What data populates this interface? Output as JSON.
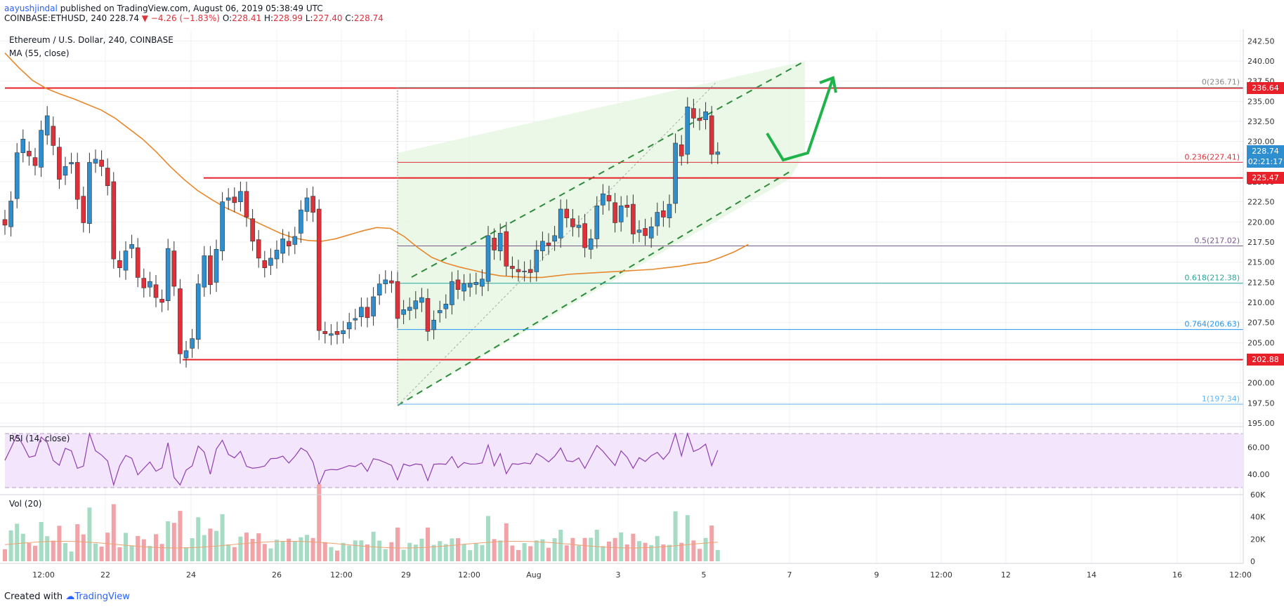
{
  "header": {
    "user": "aayushjindal",
    "published": "published on TradingView.com, August 06, 2019 05:38:49 UTC",
    "symbol": "COINBASE:ETHUSD, 240",
    "last": "228.74",
    "change": "−4.26 (−1.83%)",
    "o_label": "O:",
    "o": "228.41",
    "h_label": "H:",
    "h": "228.99",
    "l_label": "L:",
    "l": "227.40",
    "c_label": "C:",
    "c": "228.74"
  },
  "title": "Ethereum / U.S. Dollar, 240, COINBASE",
  "ma_label": "MA (55, close)",
  "rsi_label": "RSI (14, close)",
  "vol_label": "Vol (20)",
  "footer": {
    "created": "Created with",
    "brand": "TradingView"
  },
  "colors": {
    "up": "#2e8fd0",
    "down": "#e0303a",
    "level": "#e8202a",
    "ma": "#e8872b",
    "rsi": "#8e3fb0",
    "channel": "#2e8b3a",
    "arrow": "#1fb34a"
  },
  "price_tags": [
    {
      "price": 236.64,
      "text": "236.64",
      "color": "#e8202a"
    },
    {
      "price": 228.74,
      "text": "228.74",
      "color": "#2e8fd0"
    },
    {
      "price": 227.4,
      "text": "02:21:17",
      "color": "#2e8fd0"
    },
    {
      "price": 225.47,
      "text": "225.47",
      "color": "#e8202a"
    },
    {
      "price": 202.88,
      "text": "202.88",
      "color": "#e8202a"
    }
  ],
  "chart_data": {
    "type": "candlestick",
    "title": "Ethereum / U.S. Dollar, 240, COINBASE",
    "price_axis": [
      "242.50",
      "240.00",
      "237.50",
      "235.00",
      "232.50",
      "230.00",
      "227.50",
      "225.00",
      "222.50",
      "220.00",
      "217.50",
      "215.00",
      "212.50",
      "210.00",
      "207.50",
      "205.00",
      "202.50",
      "200.00",
      "197.50",
      "195.00"
    ],
    "ylim": [
      195,
      243
    ],
    "x_axis": [
      "12:00",
      "22",
      "24",
      "26",
      "12:00",
      "29",
      "12:00",
      "Aug",
      "3",
      "5",
      "7",
      "9",
      "12:00",
      "12",
      "14",
      "16",
      "12:00"
    ],
    "rsi_axis": [
      "60.00",
      "40.00"
    ],
    "vol_axis": [
      "60K",
      "40K",
      "20K",
      "0"
    ],
    "candles": [
      {
        "o": 220.3,
        "c": 219.6
      },
      {
        "o": 219.4,
        "c": 222.6
      },
      {
        "o": 222.9,
        "c": 228.6
      },
      {
        "o": 228.6,
        "c": 230.3
      },
      {
        "o": 228.8,
        "c": 228.2
      },
      {
        "o": 228.0,
        "c": 227.0
      },
      {
        "o": 226.8,
        "c": 231.4
      },
      {
        "o": 230.8,
        "c": 233.2
      },
      {
        "o": 231.9,
        "c": 229.5
      },
      {
        "o": 229.3,
        "c": 225.3
      },
      {
        "o": 225.8,
        "c": 226.9
      },
      {
        "o": 227.2,
        "c": 227.4
      },
      {
        "o": 227.4,
        "c": 222.8
      },
      {
        "o": 223.2,
        "c": 219.9
      },
      {
        "o": 219.8,
        "c": 227.4
      },
      {
        "o": 227.3,
        "c": 227.8
      },
      {
        "o": 227.7,
        "c": 226.9
      },
      {
        "o": 226.7,
        "c": 224.5
      },
      {
        "o": 225.0,
        "c": 215.4
      },
      {
        "o": 215.2,
        "c": 214.3
      },
      {
        "o": 214.0,
        "c": 216.4
      },
      {
        "o": 216.7,
        "c": 217.2
      },
      {
        "o": 216.8,
        "c": 213.1
      },
      {
        "o": 213.0,
        "c": 211.8
      },
      {
        "o": 211.9,
        "c": 212.6
      },
      {
        "o": 212.2,
        "c": 210.6
      },
      {
        "o": 210.4,
        "c": 210.0
      },
      {
        "o": 210.2,
        "c": 216.7
      },
      {
        "o": 216.4,
        "c": 212.0
      },
      {
        "o": 211.7,
        "c": 203.6
      },
      {
        "o": 203.1,
        "c": 204.0
      },
      {
        "o": 204.3,
        "c": 205.5
      },
      {
        "o": 205.4,
        "c": 212.3
      },
      {
        "o": 211.9,
        "c": 215.8
      },
      {
        "o": 215.8,
        "c": 212.2
      },
      {
        "o": 212.5,
        "c": 216.6
      },
      {
        "o": 216.4,
        "c": 222.5
      },
      {
        "o": 222.7,
        "c": 223.0
      },
      {
        "o": 223.1,
        "c": 222.4
      },
      {
        "o": 222.5,
        "c": 223.8
      },
      {
        "o": 223.8,
        "c": 220.6
      },
      {
        "o": 220.4,
        "c": 217.6
      },
      {
        "o": 217.8,
        "c": 215.5
      },
      {
        "o": 215.2,
        "c": 214.3
      },
      {
        "o": 214.6,
        "c": 215.5
      },
      {
        "o": 215.4,
        "c": 216.5
      },
      {
        "o": 216.1,
        "c": 217.9
      },
      {
        "o": 217.6,
        "c": 217.0
      },
      {
        "o": 217.2,
        "c": 218.2
      },
      {
        "o": 218.6,
        "c": 221.5
      },
      {
        "o": 221.3,
        "c": 223.0
      },
      {
        "o": 223.2,
        "c": 221.2
      },
      {
        "o": 221.6,
        "c": 206.5
      },
      {
        "o": 206.4,
        "c": 206.1
      },
      {
        "o": 205.9,
        "c": 206.1
      },
      {
        "o": 206.4,
        "c": 206.0
      },
      {
        "o": 206.1,
        "c": 206.5
      },
      {
        "o": 206.7,
        "c": 207.5
      },
      {
        "o": 207.8,
        "c": 208.0
      },
      {
        "o": 208.2,
        "c": 209.4
      },
      {
        "o": 209.4,
        "c": 208.1
      },
      {
        "o": 208.3,
        "c": 210.7
      },
      {
        "o": 210.9,
        "c": 212.3
      },
      {
        "o": 212.3,
        "c": 212.8
      },
      {
        "o": 212.7,
        "c": 212.4
      },
      {
        "o": 212.6,
        "c": 208.0
      },
      {
        "o": 208.5,
        "c": 209.1
      },
      {
        "o": 209.0,
        "c": 209.4
      },
      {
        "o": 209.2,
        "c": 210.2
      },
      {
        "o": 210.0,
        "c": 210.6
      },
      {
        "o": 210.5,
        "c": 206.4
      },
      {
        "o": 206.6,
        "c": 207.8
      },
      {
        "o": 208.7,
        "c": 209.0
      },
      {
        "o": 209.2,
        "c": 209.8
      },
      {
        "o": 209.7,
        "c": 212.6
      },
      {
        "o": 212.8,
        "c": 211.6
      },
      {
        "o": 211.4,
        "c": 212.3
      },
      {
        "o": 211.9,
        "c": 212.4
      },
      {
        "o": 212.2,
        "c": 212.5
      },
      {
        "o": 212.0,
        "c": 212.9
      },
      {
        "o": 212.6,
        "c": 218.3
      },
      {
        "o": 218.0,
        "c": 216.5
      },
      {
        "o": 216.4,
        "c": 218.6
      },
      {
        "o": 218.8,
        "c": 214.5
      },
      {
        "o": 214.5,
        "c": 214.2
      },
      {
        "o": 214.1,
        "c": 213.8
      },
      {
        "o": 213.8,
        "c": 213.9
      },
      {
        "o": 214.1,
        "c": 213.7
      },
      {
        "o": 213.8,
        "c": 216.5
      },
      {
        "o": 216.4,
        "c": 217.6
      },
      {
        "o": 217.4,
        "c": 217.1
      },
      {
        "o": 217.6,
        "c": 218.3
      },
      {
        "o": 218.0,
        "c": 221.6
      },
      {
        "o": 221.6,
        "c": 220.5
      },
      {
        "o": 220.4,
        "c": 219.4
      },
      {
        "o": 219.3,
        "c": 219.6
      },
      {
        "o": 219.8,
        "c": 216.8
      },
      {
        "o": 216.6,
        "c": 217.9
      },
      {
        "o": 217.9,
        "c": 222.0
      },
      {
        "o": 222.1,
        "c": 223.5
      },
      {
        "o": 223.3,
        "c": 222.6
      },
      {
        "o": 222.4,
        "c": 219.9
      },
      {
        "o": 220.0,
        "c": 222.0
      },
      {
        "o": 222.1,
        "c": 221.8
      },
      {
        "o": 222.2,
        "c": 218.5
      },
      {
        "o": 218.7,
        "c": 219.0
      },
      {
        "o": 219.2,
        "c": 218.3
      },
      {
        "o": 218.0,
        "c": 219.4
      },
      {
        "o": 219.5,
        "c": 221.2
      },
      {
        "o": 221.4,
        "c": 220.6
      },
      {
        "o": 220.5,
        "c": 222.2
      },
      {
        "o": 222.3,
        "c": 229.8
      },
      {
        "o": 229.6,
        "c": 228.2
      },
      {
        "o": 228.4,
        "c": 234.3
      },
      {
        "o": 234.1,
        "c": 232.9
      },
      {
        "o": 232.9,
        "c": 232.6
      },
      {
        "o": 232.7,
        "c": 233.7
      },
      {
        "o": 233.2,
        "c": 228.4
      },
      {
        "o": 228.4,
        "c": 228.7
      }
    ],
    "ma55": [
      241.0,
      239.2,
      237.6,
      236.6,
      235.9,
      235.3,
      234.6,
      233.9,
      232.9,
      231.6,
      230.3,
      228.7,
      226.9,
      225.3,
      223.9,
      222.8,
      221.8,
      221.0,
      220.2,
      219.4,
      218.6,
      218.0,
      217.7,
      217.6,
      217.9,
      218.4,
      218.9,
      219.3,
      219.2,
      218.2,
      216.8,
      215.6,
      214.9,
      214.4,
      214.0,
      213.6,
      213.3,
      213.2,
      213.1,
      213.1,
      213.3,
      213.5,
      213.6,
      213.7,
      213.8,
      213.9,
      214.0,
      214.1,
      214.3,
      214.5,
      214.8,
      215.0,
      215.6,
      216.3,
      217.2
    ],
    "fib_levels": [
      {
        "label": "0(236.71)",
        "price": 236.71,
        "color": "#888888"
      },
      {
        "label": "0.236(227.41)",
        "price": 227.41,
        "color": "#e0303a"
      },
      {
        "label": "0.5(217.02)",
        "price": 217.02,
        "color": "#7a5a8a"
      },
      {
        "label": "0.618(212.38)",
        "price": 212.38,
        "color": "#26a69a"
      },
      {
        "label": "0.764(206.63)",
        "price": 206.63,
        "color": "#2196f3"
      },
      {
        "label": "1(197.34)",
        "price": 197.34,
        "color": "#64b5f6"
      }
    ],
    "horizontal_levels": [
      236.64,
      225.47,
      202.88
    ]
  }
}
